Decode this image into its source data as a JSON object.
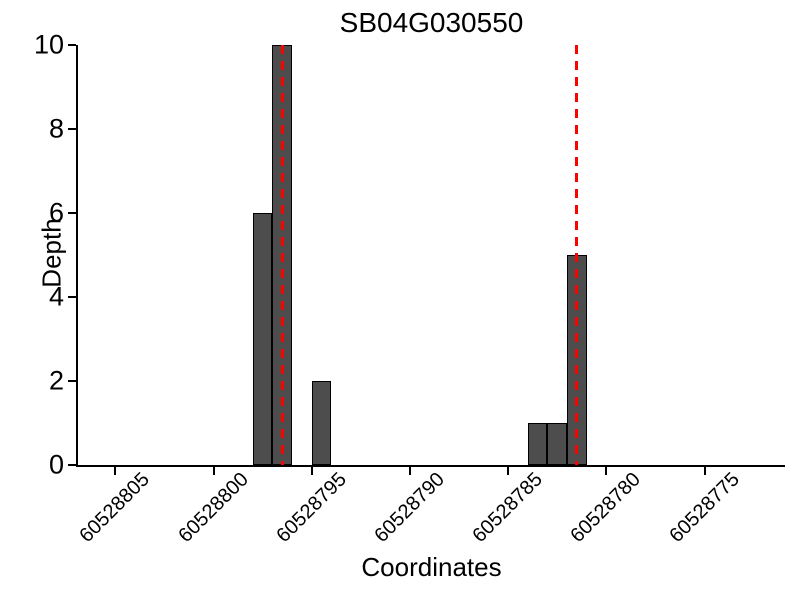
{
  "chart_data": {
    "type": "bar",
    "title": "SB04G030550",
    "xlabel": "Coordinates",
    "ylabel": "Depth",
    "x_axis": {
      "reversed": true,
      "range_left": 60528806.9,
      "range_right": 60528770.9,
      "ticks": [
        60528805,
        60528800,
        60528795,
        60528790,
        60528785,
        60528780,
        60528775
      ],
      "tick_labels": [
        "60528805",
        "60528800",
        "60528795",
        "60528790",
        "60528785",
        "60528780",
        "60528775"
      ],
      "tick_rotation_deg": 45
    },
    "y_axis": {
      "range": [
        0,
        10
      ],
      "ticks": [
        0,
        2,
        4,
        6,
        8,
        10
      ],
      "tick_labels": [
        "0",
        "2",
        "4",
        "6",
        "8",
        "10"
      ]
    },
    "bars": [
      {
        "from": 60528798,
        "to": 60528797,
        "depth": 6
      },
      {
        "from": 60528797,
        "to": 60528796,
        "depth": 10
      },
      {
        "from": 60528795,
        "to": 60528794,
        "depth": 2
      },
      {
        "from": 60528784,
        "to": 60528783,
        "depth": 1
      },
      {
        "from": 60528783,
        "to": 60528782,
        "depth": 1
      },
      {
        "from": 60528782,
        "to": 60528781,
        "depth": 5
      }
    ],
    "vlines": [
      {
        "x": 60528796.5,
        "style": "dashed",
        "color": "#ff0000"
      },
      {
        "x": 60528781.5,
        "style": "dashed",
        "color": "#ff0000"
      }
    ],
    "colors": {
      "bar_fill": "#4d4d4d",
      "bar_edge": "#000000",
      "axis": "#000000",
      "background": "#ffffff"
    },
    "grid": false
  }
}
